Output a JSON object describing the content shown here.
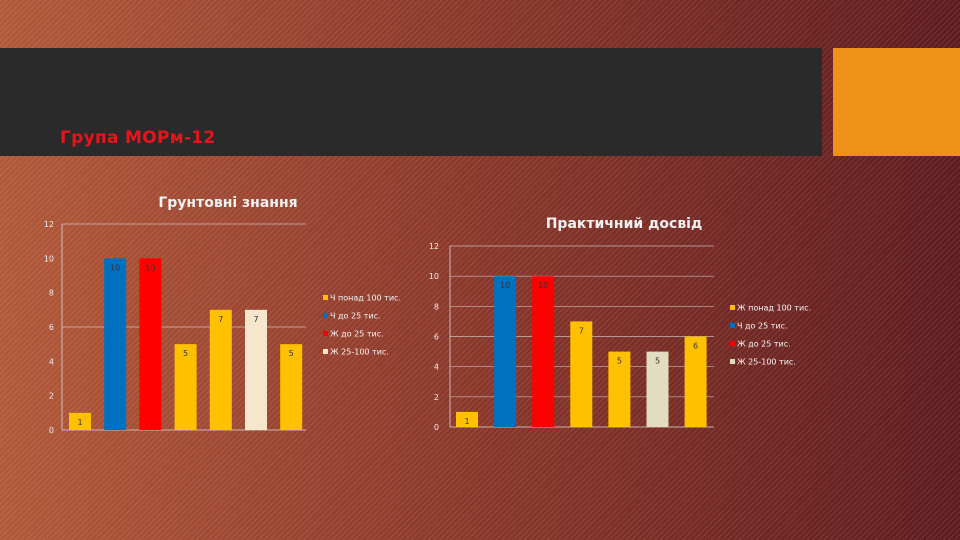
{
  "slide": {
    "title": "Група МОРм-12",
    "title_color": "#e8141c",
    "accent_color": "#ef9118"
  },
  "chart_data": [
    {
      "type": "bar",
      "title": "Грунтовні знання",
      "ylim": [
        0,
        12
      ],
      "yticks": [
        0,
        2,
        4,
        6,
        8,
        10,
        12
      ],
      "grid": true,
      "legend_position": "right",
      "values": [
        1,
        10,
        10,
        5,
        7,
        7,
        5
      ],
      "colors": [
        "#ffc000",
        "#0070c0",
        "#ff0000",
        "#ffc000",
        "#ffc000",
        "#f5e6cc",
        "#ffc000"
      ],
      "legend": [
        {
          "label": "Ч понад 100 тис.",
          "color": "#ffc000"
        },
        {
          "label": "Ч до 25 тис.",
          "color": "#0070c0"
        },
        {
          "label": "Ж до 25 тис.",
          "color": "#ff0000"
        },
        {
          "label": "Ж 25-100 тис.",
          "color": "#f5e6cc"
        }
      ]
    },
    {
      "type": "bar",
      "title": "Практичний досвід",
      "ylim": [
        0,
        12
      ],
      "yticks": [
        0,
        2,
        4,
        6,
        8,
        10,
        12
      ],
      "grid": true,
      "legend_position": "right",
      "values": [
        1,
        10,
        10,
        7,
        5,
        5,
        6
      ],
      "colors": [
        "#ffc000",
        "#0070c0",
        "#ff0000",
        "#ffc000",
        "#ffc000",
        "#e2dcc0",
        "#ffc000"
      ],
      "legend": [
        {
          "label": "Ж понад 100 тис.",
          "color": "#ffc000"
        },
        {
          "label": "Ч до 25 тис.",
          "color": "#0070c0"
        },
        {
          "label": "Ж до 25 тис.",
          "color": "#ff0000"
        },
        {
          "label": "Ж 25-100 тис.",
          "color": "#e2dcc0"
        }
      ]
    }
  ]
}
